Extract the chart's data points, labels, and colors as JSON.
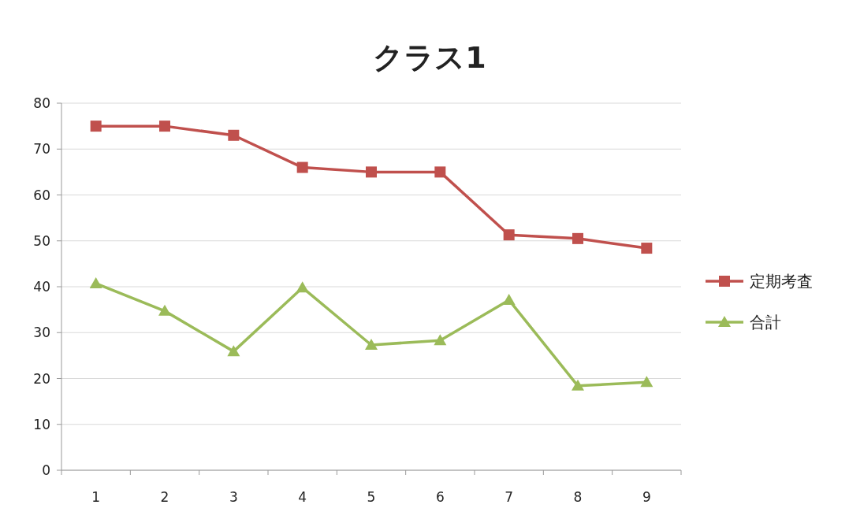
{
  "chart_data": {
    "type": "line",
    "title": "クラス1",
    "categories": [
      "1",
      "2",
      "3",
      "4",
      "5",
      "6",
      "7",
      "8",
      "9"
    ],
    "series": [
      {
        "name": "定期考査",
        "color": "#c0504d",
        "marker": "square",
        "values": [
          75,
          75,
          73,
          66,
          65,
          65,
          51.3,
          50.5,
          48.4
        ]
      },
      {
        "name": "合計",
        "color": "#9bbb59",
        "marker": "triangle",
        "values": [
          40.7,
          34.7,
          25.9,
          39.8,
          27.3,
          28.3,
          37.1,
          18.4,
          19.2
        ]
      }
    ],
    "ylim": [
      0,
      80
    ],
    "yticks": [
      0,
      10,
      20,
      30,
      40,
      50,
      60,
      70,
      80
    ],
    "grid": "y",
    "legend": "right"
  }
}
